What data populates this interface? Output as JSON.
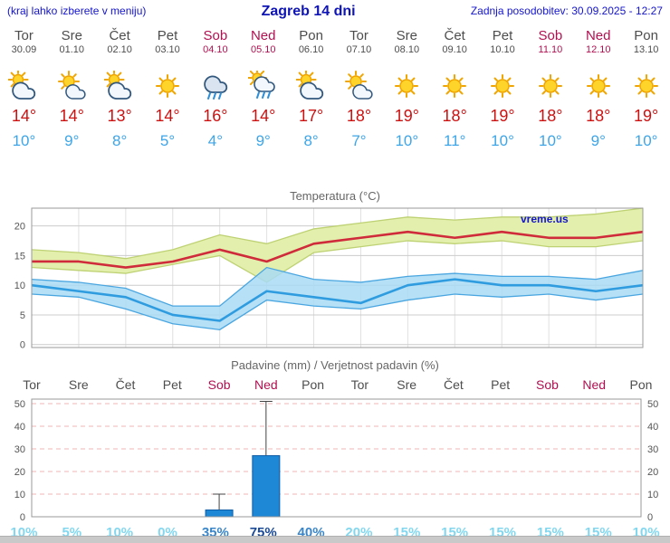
{
  "header": {
    "left_note": "(kraj lahko izberete v meniju)",
    "title": "Zagreb 14 dni",
    "updated": "Zadnja posodobitev: 30.09.2025 - 12:27"
  },
  "colors": {
    "header_blue": "#1414cc",
    "title_blue": "#0f14b4",
    "weekday": "#4d4d4d",
    "weekend": "#b01050",
    "temp_high": "#cc1111",
    "temp_low": "#3da5e8",
    "chart_title": "#666666",
    "watermark": "#1515cc",
    "percent_levels": [
      "#82d7ef",
      "#3a86c8",
      "#1b4a97"
    ]
  },
  "days": [
    {
      "name": "Tor",
      "date": "30.09",
      "weekend": false,
      "icon": "mostly-cloudy",
      "high": "14°",
      "low": "10°"
    },
    {
      "name": "Sre",
      "date": "01.10",
      "weekend": false,
      "icon": "partly-cloudy",
      "high": "14°",
      "low": "9°"
    },
    {
      "name": "Čet",
      "date": "02.10",
      "weekend": false,
      "icon": "mostly-cloudy",
      "high": "13°",
      "low": "8°"
    },
    {
      "name": "Pet",
      "date": "03.10",
      "weekend": false,
      "icon": "sunny",
      "high": "14°",
      "low": "5°"
    },
    {
      "name": "Sob",
      "date": "04.10",
      "weekend": true,
      "icon": "rain",
      "high": "16°",
      "low": "4°"
    },
    {
      "name": "Ned",
      "date": "05.10",
      "weekend": true,
      "icon": "sun-showers",
      "high": "14°",
      "low": "9°"
    },
    {
      "name": "Pon",
      "date": "06.10",
      "weekend": false,
      "icon": "mostly-cloudy",
      "high": "17°",
      "low": "8°"
    },
    {
      "name": "Tor",
      "date": "07.10",
      "weekend": false,
      "icon": "partly-cloudy",
      "high": "18°",
      "low": "7°"
    },
    {
      "name": "Sre",
      "date": "08.10",
      "weekend": false,
      "icon": "sunny",
      "high": "19°",
      "low": "10°"
    },
    {
      "name": "Čet",
      "date": "09.10",
      "weekend": false,
      "icon": "sunny",
      "high": "18°",
      "low": "11°"
    },
    {
      "name": "Pet",
      "date": "10.10",
      "weekend": false,
      "icon": "sunny",
      "high": "19°",
      "low": "10°"
    },
    {
      "name": "Sob",
      "date": "11.10",
      "weekend": true,
      "icon": "sunny",
      "high": "18°",
      "low": "10°"
    },
    {
      "name": "Ned",
      "date": "12.10",
      "weekend": true,
      "icon": "sunny",
      "high": "18°",
      "low": "9°"
    },
    {
      "name": "Pon",
      "date": "13.10",
      "weekend": false,
      "icon": "sunny",
      "high": "19°",
      "low": "10°"
    }
  ],
  "chart_data": [
    {
      "type": "line",
      "title": "Temperatura (°C)",
      "watermark": "vreme.us",
      "categories": [
        "Tor",
        "Sre",
        "Čet",
        "Pet",
        "Sob",
        "Ned",
        "Pon",
        "Tor",
        "Sre",
        "Čet",
        "Pet",
        "Sob",
        "Ned",
        "Pon"
      ],
      "ylim": [
        -0.5,
        23
      ],
      "yticks": [
        0,
        5,
        10,
        15,
        20
      ],
      "grid": true,
      "series": [
        {
          "name": "max-temp-range",
          "kind": "band",
          "upper": [
            16,
            15.5,
            14.5,
            16,
            18.5,
            17,
            19.5,
            20.5,
            21.5,
            21,
            21.5,
            21.5,
            22,
            23
          ],
          "lower": [
            13,
            12.5,
            12,
            13.5,
            15,
            10.5,
            15.5,
            16.5,
            17.5,
            17,
            17.5,
            16.5,
            16.5,
            17.5
          ],
          "fill": "#e3f0ad",
          "edge": "#bed173",
          "opacity": 1
        },
        {
          "name": "min-temp-range",
          "kind": "band",
          "upper": [
            11,
            10.5,
            9.5,
            6.5,
            6.5,
            13,
            11,
            10.5,
            11.5,
            12,
            11.5,
            11.5,
            11,
            12.5
          ],
          "lower": [
            8.5,
            8,
            6,
            3.5,
            2.5,
            7.5,
            6.5,
            6,
            7.5,
            8.5,
            8,
            8.5,
            7.5,
            8.5
          ],
          "fill": "#a9dbf5",
          "edge": "#4aa6e0",
          "opacity": 0.85
        },
        {
          "name": "max-temp",
          "kind": "line",
          "color": "#cf2b3a",
          "values": [
            14,
            14,
            13,
            14,
            16,
            14,
            17,
            18,
            19,
            18,
            19,
            18,
            18,
            19
          ]
        },
        {
          "name": "min-temp",
          "kind": "line",
          "color": "#2f9ce0",
          "values": [
            10,
            9,
            8,
            5,
            4,
            9,
            8,
            7,
            10,
            11,
            10,
            10,
            9,
            10
          ]
        }
      ]
    },
    {
      "type": "bar",
      "title": "Padavine (mm) / Verjetnost padavin (%)",
      "categories": [
        "Tor",
        "Sre",
        "Čet",
        "Pet",
        "Sob",
        "Ned",
        "Pon",
        "Tor",
        "Sre",
        "Čet",
        "Pet",
        "Sob",
        "Ned",
        "Pon"
      ],
      "values": [
        0,
        0,
        0,
        0,
        3,
        27,
        0,
        0,
        0,
        0,
        0,
        0,
        0,
        0
      ],
      "whisker_max": [
        0,
        0,
        0,
        0,
        10,
        51,
        0,
        0,
        0,
        0,
        0,
        0,
        0,
        0
      ],
      "probabilities": [
        "10%",
        "5%",
        "10%",
        "0%",
        "35%",
        "75%",
        "40%",
        "20%",
        "15%",
        "15%",
        "15%",
        "15%",
        "15%",
        "10%"
      ],
      "prob_levels": [
        0,
        0,
        0,
        0,
        1,
        2,
        1,
        0,
        0,
        0,
        0,
        0,
        0,
        0
      ],
      "ylim": [
        0,
        52
      ],
      "yticks": [
        0,
        10,
        20,
        30,
        40,
        50
      ],
      "bar_color": "#1e87d6",
      "bar_edge": "#0e5da6",
      "gridline_color": "#f0b4b4"
    }
  ]
}
